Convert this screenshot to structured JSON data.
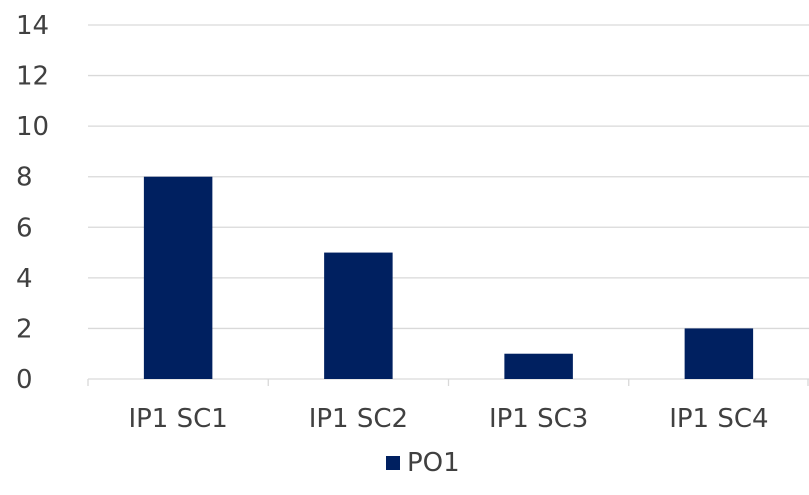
{
  "chart_data": {
    "type": "bar",
    "categories": [
      "IP1 SC1",
      "IP1 SC2",
      "IP1 SC3",
      "IP1 SC4"
    ],
    "series": [
      {
        "name": "PO1",
        "values": [
          8,
          5,
          1,
          2
        ],
        "color": "#002060"
      }
    ],
    "title": "",
    "xlabel": "",
    "ylabel": "",
    "ylim": [
      0,
      14
    ],
    "yticks": [
      0,
      2,
      4,
      6,
      8,
      10,
      12,
      14
    ],
    "grid": true,
    "legend_position": "bottom"
  }
}
